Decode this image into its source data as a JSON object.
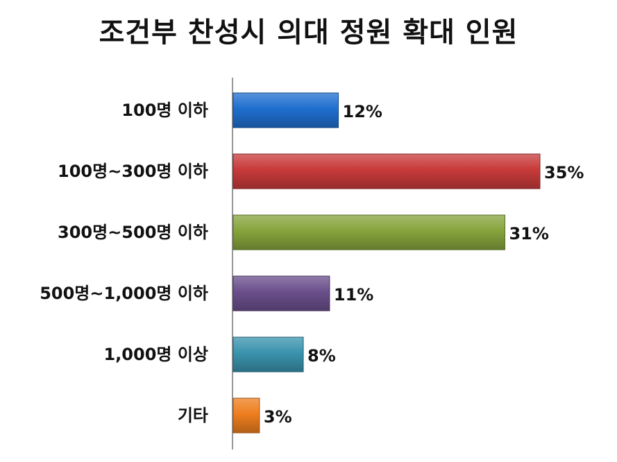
{
  "chart_data": {
    "type": "bar",
    "orientation": "horizontal",
    "title": "조건부 찬성시 의대 정원 확대 인원",
    "categories": [
      "100명 이하",
      "100명~300명 이하",
      "300명~500명 이하",
      "500명~1,000명 이하",
      "1,000명 이상",
      "기타"
    ],
    "values": [
      12,
      35,
      31,
      11,
      8,
      3
    ],
    "value_labels": [
      "12%",
      "35%",
      "31%",
      "11%",
      "8%",
      "3%"
    ],
    "colors": [
      "#1f6fcf",
      "#c83a3a",
      "#86a43c",
      "#6a4f8c",
      "#3a93ad",
      "#ee7e1e"
    ],
    "unit": "%",
    "xlim": [
      0,
      35
    ],
    "grid": false,
    "legend": "none"
  }
}
